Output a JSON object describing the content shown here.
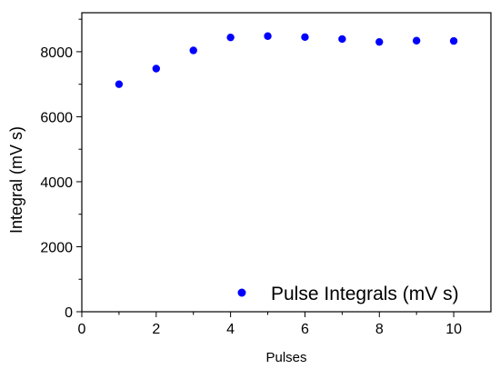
{
  "chart_data": {
    "type": "scatter",
    "title": "",
    "xlabel": "Pulses",
    "ylabel": "Integral (mV s)",
    "xlim": [
      0,
      11
    ],
    "ylim": [
      0,
      9200
    ],
    "xticks": [
      0,
      2,
      4,
      6,
      8,
      10
    ],
    "yticks": [
      0,
      2000,
      4000,
      6000,
      8000
    ],
    "grid": false,
    "legend_position": "bottom-right",
    "series": [
      {
        "name": "Pulse Integrals (mV s)",
        "color": "#0000ff",
        "marker": "circle",
        "x": [
          1,
          2,
          3,
          4,
          5,
          6,
          7,
          8,
          9,
          10
        ],
        "y": [
          7000,
          7480,
          8040,
          8440,
          8480,
          8450,
          8390,
          8300,
          8340,
          8330
        ]
      }
    ]
  }
}
